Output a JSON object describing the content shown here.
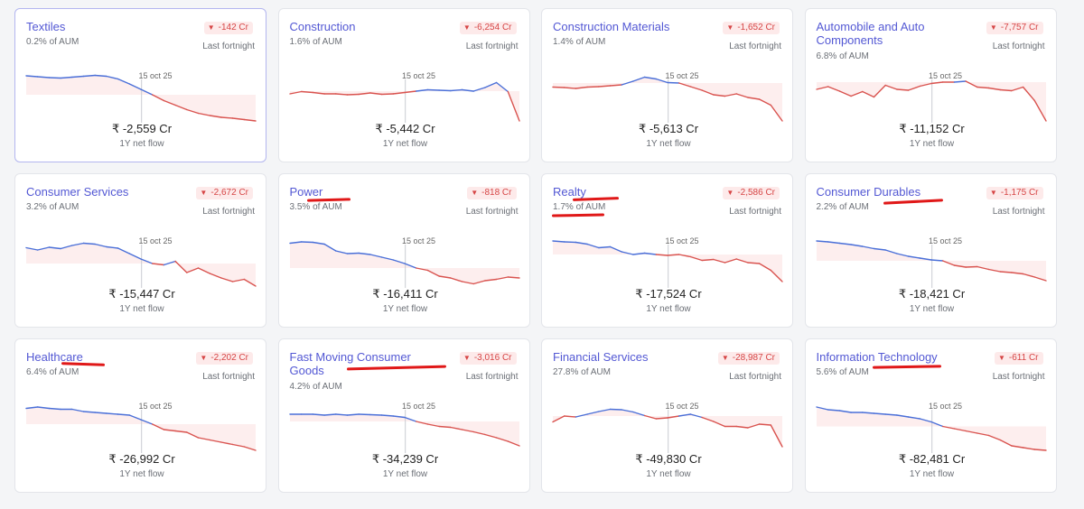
{
  "cards": [
    {
      "title": "Textiles",
      "aum": "0.2% of AUM",
      "badge": "-142 Cr",
      "period": "Last fortnight",
      "date_label": "15 oct 25",
      "net_flow": "₹ -2,559 Cr",
      "net_flow_label": "1Y net flow",
      "selected": true,
      "points": [
        1,
        0.98,
        0.96,
        0.95,
        0.97,
        0.99,
        1.01,
        0.99,
        0.93,
        0.82,
        0.7,
        0.58,
        0.45,
        0.35,
        0.25,
        0.17,
        0.12,
        0.08,
        0.06,
        0.03,
        0
      ]
    },
    {
      "title": "Construction",
      "aum": "1.6% of AUM",
      "badge": "-6,254 Cr",
      "period": "Last fortnight",
      "date_label": "15 oct 25",
      "net_flow": "₹ -5,442 Cr",
      "net_flow_label": "1Y net flow",
      "points": [
        0.6,
        0.65,
        0.63,
        0.6,
        0.6,
        0.58,
        0.59,
        0.62,
        0.59,
        0.6,
        0.63,
        0.66,
        0.69,
        0.68,
        0.67,
        0.69,
        0.66,
        0.74,
        0.85,
        0.65,
        0
      ]
    },
    {
      "title": "Construction Materials",
      "aum": "1.4% of AUM",
      "badge": "-1,652 Cr",
      "period": "Last fortnight",
      "date_label": "15 oct 25",
      "net_flow": "₹ -5,613 Cr",
      "net_flow_label": "1Y net flow",
      "points": [
        0.75,
        0.74,
        0.72,
        0.75,
        0.76,
        0.78,
        0.8,
        0.88,
        0.97,
        0.93,
        0.85,
        0.84,
        0.76,
        0.68,
        0.58,
        0.55,
        0.6,
        0.52,
        0.48,
        0.35,
        0
      ]
    },
    {
      "title": "Automobile and Auto Components",
      "aum": "6.8% of AUM",
      "badge": "-7,757 Cr",
      "period": "Last fortnight",
      "date_label": "15 oct 25",
      "net_flow": "₹ -11,152 Cr",
      "net_flow_label": "1Y net flow",
      "points": [
        0.7,
        0.76,
        0.66,
        0.55,
        0.65,
        0.53,
        0.79,
        0.7,
        0.68,
        0.77,
        0.83,
        0.86,
        0.86,
        0.88,
        0.75,
        0.73,
        0.69,
        0.67,
        0.75,
        0.45,
        0
      ]
    },
    {
      "title": "Consumer Services",
      "aum": "3.2% of AUM",
      "badge": "-2,672 Cr",
      "period": "Last fortnight",
      "date_label": "15 oct 25",
      "net_flow": "₹ -15,447 Cr",
      "net_flow_label": "1Y net flow",
      "points": [
        0.85,
        0.8,
        0.86,
        0.83,
        0.9,
        0.95,
        0.93,
        0.87,
        0.84,
        0.72,
        0.6,
        0.5,
        0.47,
        0.55,
        0.3,
        0.4,
        0.28,
        0.18,
        0.1,
        0.15,
        0
      ]
    },
    {
      "title": "Power",
      "aum": "3.5% of AUM",
      "badge": "-818 Cr",
      "period": "Last fortnight",
      "date_label": "15 oct 25",
      "net_flow": "₹ -16,411 Cr",
      "net_flow_label": "1Y net flow",
      "points": [
        0.95,
        0.98,
        0.97,
        0.93,
        0.78,
        0.72,
        0.73,
        0.7,
        0.64,
        0.58,
        0.5,
        0.4,
        0.35,
        0.22,
        0.18,
        0.1,
        0.05,
        0.12,
        0.15,
        0.2,
        0.18
      ]
    },
    {
      "title": "Realty",
      "aum": "1.7% of AUM",
      "badge": "-2,586 Cr",
      "period": "Last fortnight",
      "date_label": "15 oct 25",
      "net_flow": "₹ -17,524 Cr",
      "net_flow_label": "1Y net flow",
      "points": [
        1,
        0.98,
        0.97,
        0.93,
        0.85,
        0.87,
        0.76,
        0.7,
        0.73,
        0.7,
        0.68,
        0.7,
        0.65,
        0.57,
        0.59,
        0.52,
        0.6,
        0.52,
        0.5,
        0.35,
        0.1
      ]
    },
    {
      "title": "Consumer Durables",
      "aum": "2.2% of AUM",
      "badge": "-1,175 Cr",
      "period": "Last fortnight",
      "date_label": "15 oct 25",
      "net_flow": "₹ -18,421 Cr",
      "net_flow_label": "1Y net flow",
      "points": [
        1,
        0.98,
        0.95,
        0.92,
        0.88,
        0.83,
        0.8,
        0.72,
        0.66,
        0.62,
        0.58,
        0.56,
        0.46,
        0.42,
        0.43,
        0.37,
        0.32,
        0.3,
        0.27,
        0.2,
        0.12
      ]
    },
    {
      "title": "Healthcare",
      "aum": "6.4% of AUM",
      "badge": "-2,202 Cr",
      "period": "Last fortnight",
      "date_label": "15 oct 25",
      "net_flow": "₹ -26,992 Cr",
      "net_flow_label": "1Y net flow",
      "points": [
        0.95,
        0.98,
        0.95,
        0.93,
        0.93,
        0.88,
        0.86,
        0.84,
        0.82,
        0.8,
        0.7,
        0.6,
        0.48,
        0.45,
        0.42,
        0.3,
        0.25,
        0.2,
        0.15,
        0.1,
        0.02
      ]
    },
    {
      "title": "Fast Moving Consumer Goods",
      "aum": "4.2% of AUM",
      "badge": "-3,016 Cr",
      "period": "Last fortnight",
      "date_label": "15 oct 25",
      "net_flow": "₹ -34,239 Cr",
      "net_flow_label": "1Y net flow",
      "points": [
        0.82,
        0.82,
        0.82,
        0.8,
        0.82,
        0.8,
        0.82,
        0.81,
        0.8,
        0.78,
        0.75,
        0.66,
        0.6,
        0.55,
        0.53,
        0.48,
        0.43,
        0.37,
        0.3,
        0.22,
        0.12
      ]
    },
    {
      "title": "Financial Services",
      "aum": "27.8% of AUM",
      "badge": "-28,987 Cr",
      "period": "Last fortnight",
      "date_label": "15 oct 25",
      "net_flow": "₹ -49,830 Cr",
      "net_flow_label": "1Y net flow",
      "points": [
        0.65,
        0.78,
        0.76,
        0.82,
        0.88,
        0.93,
        0.92,
        0.87,
        0.79,
        0.72,
        0.74,
        0.78,
        0.82,
        0.75,
        0.66,
        0.55,
        0.55,
        0.52,
        0.6,
        0.58,
        0.1
      ]
    },
    {
      "title": "Information Technology",
      "aum": "5.6% of AUM",
      "badge": "-611 Cr",
      "period": "Last fortnight",
      "date_label": "15 oct 25",
      "net_flow": "₹ -82,481 Cr",
      "net_flow_label": "1Y net flow",
      "points": [
        0.98,
        0.92,
        0.9,
        0.86,
        0.86,
        0.84,
        0.82,
        0.8,
        0.76,
        0.72,
        0.65,
        0.55,
        0.5,
        0.45,
        0.4,
        0.35,
        0.25,
        0.12,
        0.08,
        0.04,
        0.02
      ]
    }
  ],
  "colors": {
    "title": "#5358d4",
    "line_up": "#4a6fd8",
    "line_down": "#d9534f",
    "fill_up": "#eceffd",
    "fill_down": "#fdeeee",
    "negative": "#d64545",
    "annotation": "#e01818"
  }
}
